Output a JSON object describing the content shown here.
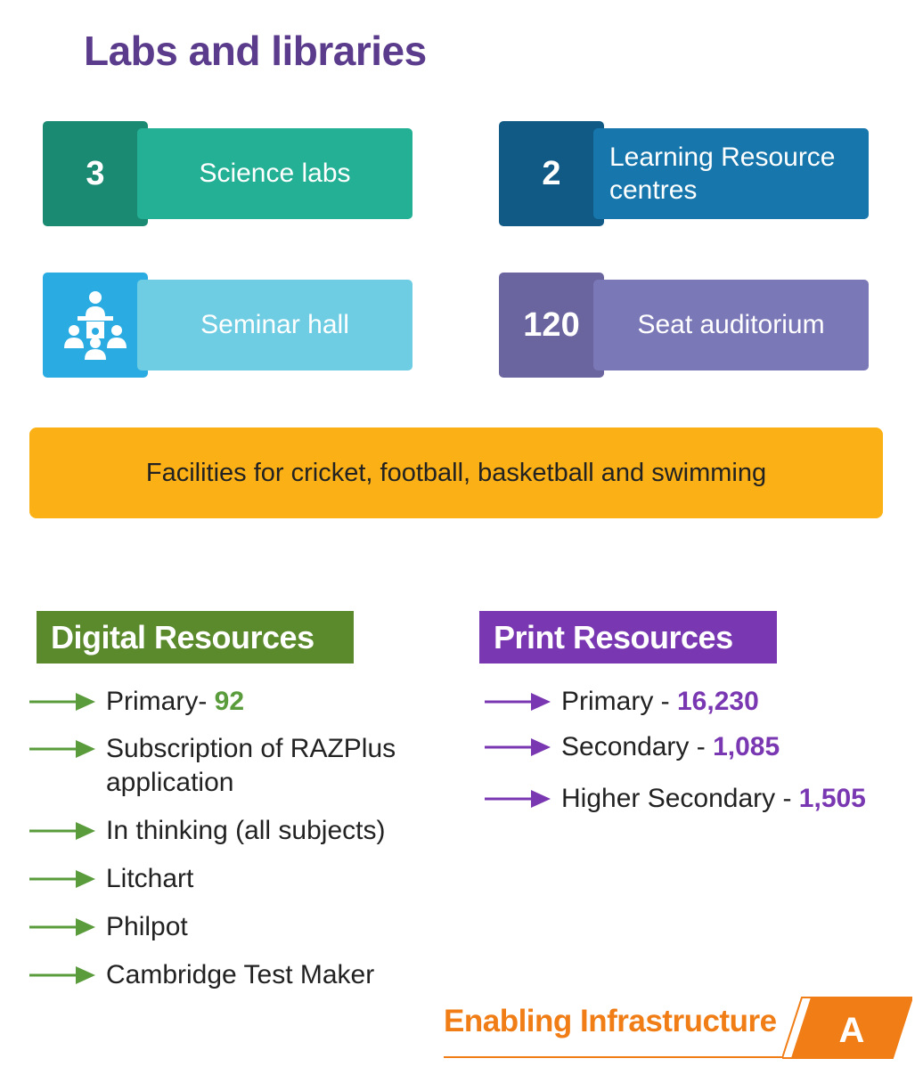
{
  "title": "Labs and libraries",
  "facts": [
    {
      "number": "3",
      "label": "Science labs"
    },
    {
      "number": "2",
      "label": "Learning Resource centres"
    },
    {
      "icon": "seminar-presenter-icon",
      "label": "Seminar hall"
    },
    {
      "number": "120",
      "label": "Seat auditorium"
    }
  ],
  "facilities": "Facilities for cricket, football, basketball and swimming",
  "digital": {
    "heading": "Digital Resources",
    "items": [
      {
        "text": "Primary- ",
        "value": "92"
      },
      {
        "text": "Subscription of RAZPlus application"
      },
      {
        "text": "In thinking (all subjects)"
      },
      {
        "text": "Litchart"
      },
      {
        "text": "Philpot"
      },
      {
        "text": "Cambridge Test Maker"
      }
    ]
  },
  "print": {
    "heading": "Print Resources",
    "items": [
      {
        "text": "Primary - ",
        "value": "16,230"
      },
      {
        "text": "Secondary - ",
        "value": "1,085"
      },
      {
        "text": "Higher Secondary - ",
        "value": "1,505"
      }
    ]
  },
  "footer": {
    "label": "Enabling Infrastructure",
    "badge": "A"
  },
  "colors": {
    "title": "#5b3b8c",
    "digital_accent": "#5a8a2b",
    "print_accent": "#7a37b2",
    "facilities_bg": "#fbb116",
    "footer_accent": "#f07d15"
  }
}
